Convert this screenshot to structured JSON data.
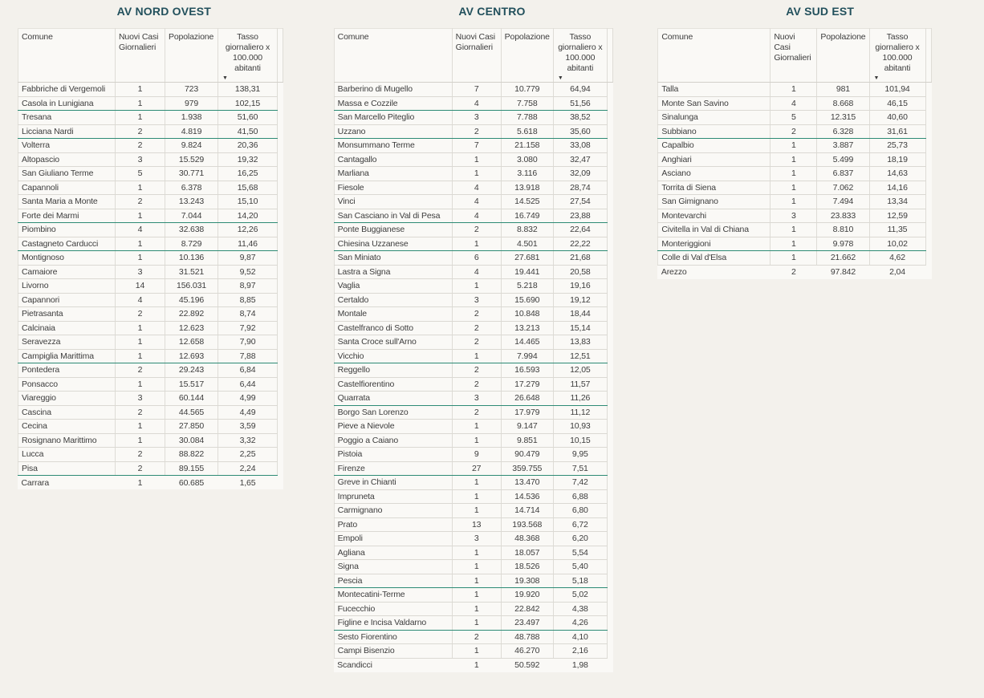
{
  "colors": {
    "background": "#f3f1ec",
    "title_text": "#22505c",
    "teal_divider": "#2d8b75",
    "body_text": "#3d3d3d"
  },
  "sort_icon": "▼",
  "columns": [
    [
      "Comune"
    ],
    [
      "Nuovi Casi",
      "Giornalieri"
    ],
    [
      "Popolazione"
    ],
    [
      "Tasso",
      "giornaliero x",
      "100.000",
      "abitanti"
    ]
  ],
  "tables": [
    {
      "title": "AV NORD OVEST",
      "teal_divider_after_rows": [
        2,
        4,
        10,
        12,
        20,
        28
      ],
      "rows": [
        [
          "Fabbriche di Vergemoli",
          "1",
          "723",
          "138,31"
        ],
        [
          "Casola in Lunigiana",
          "1",
          "979",
          "102,15"
        ],
        [
          "Tresana",
          "1",
          "1.938",
          "51,60"
        ],
        [
          "Licciana Nardi",
          "2",
          "4.819",
          "41,50"
        ],
        [
          "Volterra",
          "2",
          "9.824",
          "20,36"
        ],
        [
          "Altopascio",
          "3",
          "15.529",
          "19,32"
        ],
        [
          "San Giuliano Terme",
          "5",
          "30.771",
          "16,25"
        ],
        [
          "Capannoli",
          "1",
          "6.378",
          "15,68"
        ],
        [
          "Santa Maria a Monte",
          "2",
          "13.243",
          "15,10"
        ],
        [
          "Forte dei Marmi",
          "1",
          "7.044",
          "14,20"
        ],
        [
          "Piombino",
          "4",
          "32.638",
          "12,26"
        ],
        [
          "Castagneto Carducci",
          "1",
          "8.729",
          "11,46"
        ],
        [
          "Montignoso",
          "1",
          "10.136",
          "9,87"
        ],
        [
          "Camaiore",
          "3",
          "31.521",
          "9,52"
        ],
        [
          "Livorno",
          "14",
          "156.031",
          "8,97"
        ],
        [
          "Capannori",
          "4",
          "45.196",
          "8,85"
        ],
        [
          "Pietrasanta",
          "2",
          "22.892",
          "8,74"
        ],
        [
          "Calcinaia",
          "1",
          "12.623",
          "7,92"
        ],
        [
          "Seravezza",
          "1",
          "12.658",
          "7,90"
        ],
        [
          "Campiglia Marittima",
          "1",
          "12.693",
          "7,88"
        ],
        [
          "Pontedera",
          "2",
          "29.243",
          "6,84"
        ],
        [
          "Ponsacco",
          "1",
          "15.517",
          "6,44"
        ],
        [
          "Viareggio",
          "3",
          "60.144",
          "4,99"
        ],
        [
          "Cascina",
          "2",
          "44.565",
          "4,49"
        ],
        [
          "Cecina",
          "1",
          "27.850",
          "3,59"
        ],
        [
          "Rosignano Marittimo",
          "1",
          "30.084",
          "3,32"
        ],
        [
          "Lucca",
          "2",
          "88.822",
          "2,25"
        ],
        [
          "Pisa",
          "2",
          "89.155",
          "2,24"
        ],
        [
          "Carrara",
          "1",
          "60.685",
          "1,65"
        ]
      ]
    },
    {
      "title": "AV CENTRO",
      "teal_divider_after_rows": [
        2,
        4,
        10,
        12,
        20,
        23,
        28,
        36,
        39
      ],
      "rows": [
        [
          "Barberino di Mugello",
          "7",
          "10.779",
          "64,94"
        ],
        [
          "Massa e Cozzile",
          "4",
          "7.758",
          "51,56"
        ],
        [
          "San Marcello Piteglio",
          "3",
          "7.788",
          "38,52"
        ],
        [
          "Uzzano",
          "2",
          "5.618",
          "35,60"
        ],
        [
          "Monsummano Terme",
          "7",
          "21.158",
          "33,08"
        ],
        [
          "Cantagallo",
          "1",
          "3.080",
          "32,47"
        ],
        [
          "Marliana",
          "1",
          "3.116",
          "32,09"
        ],
        [
          "Fiesole",
          "4",
          "13.918",
          "28,74"
        ],
        [
          "Vinci",
          "4",
          "14.525",
          "27,54"
        ],
        [
          "San Casciano in Val di Pesa",
          "4",
          "16.749",
          "23,88"
        ],
        [
          "Ponte Buggianese",
          "2",
          "8.832",
          "22,64"
        ],
        [
          "Chiesina Uzzanese",
          "1",
          "4.501",
          "22,22"
        ],
        [
          "San Miniato",
          "6",
          "27.681",
          "21,68"
        ],
        [
          "Lastra a Signa",
          "4",
          "19.441",
          "20,58"
        ],
        [
          "Vaglia",
          "1",
          "5.218",
          "19,16"
        ],
        [
          "Certaldo",
          "3",
          "15.690",
          "19,12"
        ],
        [
          "Montale",
          "2",
          "10.848",
          "18,44"
        ],
        [
          "Castelfranco di Sotto",
          "2",
          "13.213",
          "15,14"
        ],
        [
          "Santa Croce sull'Arno",
          "2",
          "14.465",
          "13,83"
        ],
        [
          "Vicchio",
          "1",
          "7.994",
          "12,51"
        ],
        [
          "Reggello",
          "2",
          "16.593",
          "12,05"
        ],
        [
          "Castelfiorentino",
          "2",
          "17.279",
          "11,57"
        ],
        [
          "Quarrata",
          "3",
          "26.648",
          "11,26"
        ],
        [
          "Borgo San Lorenzo",
          "2",
          "17.979",
          "11,12"
        ],
        [
          "Pieve a Nievole",
          "1",
          "9.147",
          "10,93"
        ],
        [
          "Poggio a Caiano",
          "1",
          "9.851",
          "10,15"
        ],
        [
          "Pistoia",
          "9",
          "90.479",
          "9,95"
        ],
        [
          "Firenze",
          "27",
          "359.755",
          "7,51"
        ],
        [
          "Greve in Chianti",
          "1",
          "13.470",
          "7,42"
        ],
        [
          "Impruneta",
          "1",
          "14.536",
          "6,88"
        ],
        [
          "Carmignano",
          "1",
          "14.714",
          "6,80"
        ],
        [
          "Prato",
          "13",
          "193.568",
          "6,72"
        ],
        [
          "Empoli",
          "3",
          "48.368",
          "6,20"
        ],
        [
          "Agliana",
          "1",
          "18.057",
          "5,54"
        ],
        [
          "Signa",
          "1",
          "18.526",
          "5,40"
        ],
        [
          "Pescia",
          "1",
          "19.308",
          "5,18"
        ],
        [
          "Montecatini-Terme",
          "1",
          "19.920",
          "5,02"
        ],
        [
          "Fucecchio",
          "1",
          "22.842",
          "4,38"
        ],
        [
          "Figline e Incisa Valdarno",
          "1",
          "23.497",
          "4,26"
        ],
        [
          "Sesto Fiorentino",
          "2",
          "48.788",
          "4,10"
        ],
        [
          "Campi Bisenzio",
          "1",
          "46.270",
          "2,16"
        ],
        [
          "Scandicci",
          "1",
          "50.592",
          "1,98"
        ]
      ]
    },
    {
      "title": "AV SUD EST",
      "teal_divider_after_rows": [
        4,
        12
      ],
      "rows": [
        [
          "Talla",
          "1",
          "981",
          "101,94"
        ],
        [
          "Monte San Savino",
          "4",
          "8.668",
          "46,15"
        ],
        [
          "Sinalunga",
          "5",
          "12.315",
          "40,60"
        ],
        [
          "Subbiano",
          "2",
          "6.328",
          "31,61"
        ],
        [
          "Capalbio",
          "1",
          "3.887",
          "25,73"
        ],
        [
          "Anghiari",
          "1",
          "5.499",
          "18,19"
        ],
        [
          "Asciano",
          "1",
          "6.837",
          "14,63"
        ],
        [
          "Torrita di Siena",
          "1",
          "7.062",
          "14,16"
        ],
        [
          "San Gimignano",
          "1",
          "7.494",
          "13,34"
        ],
        [
          "Montevarchi",
          "3",
          "23.833",
          "12,59"
        ],
        [
          "Civitella in Val di Chiana",
          "1",
          "8.810",
          "11,35"
        ],
        [
          "Monteriggioni",
          "1",
          "9.978",
          "10,02"
        ],
        [
          "Colle di Val d'Elsa",
          "1",
          "21.662",
          "4,62"
        ],
        [
          "Arezzo",
          "2",
          "97.842",
          "2,04"
        ]
      ]
    }
  ]
}
